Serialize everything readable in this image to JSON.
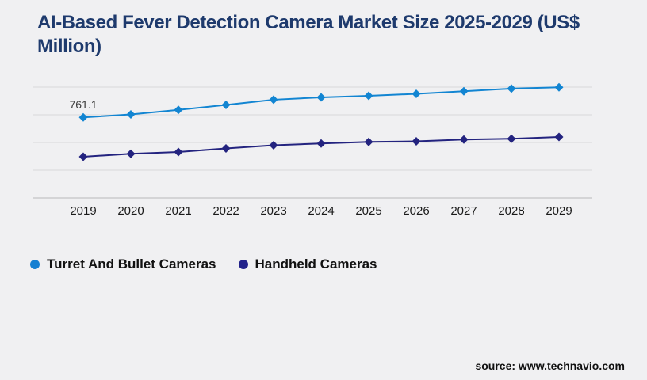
{
  "title": "AI-Based Fever Detection Camera Market Size 2025-2029 (US$ Million)",
  "source": "source: www.technavio.com",
  "colors": {
    "background": "#f0f0f2",
    "title": "#1e3a6d",
    "gridline": "#d8d8da",
    "axis": "#b7b7ba",
    "tick_text": "#1a1a1a",
    "turret_blue": "#1285d2",
    "handheld_navy": "#23237f"
  },
  "legend": {
    "items": [
      {
        "label": "Turret And Bullet Cameras",
        "color": "#1580d2"
      },
      {
        "label": "Handheld Cameras",
        "color": "#22228a"
      }
    ]
  },
  "chart_data": {
    "type": "line",
    "title": "AI-Based Fever Detection Camera Market Size 2025-2029 (US$ Million)",
    "x": [
      2019,
      2020,
      2021,
      2022,
      2023,
      2024,
      2025,
      2026,
      2027,
      2028,
      2029
    ],
    "series": [
      {
        "name": "Turret And Bullet Cameras",
        "color": "#1285d2",
        "values": [
          761.1,
          777.0,
          801.8,
          828.4,
          856.7,
          869.5,
          878.1,
          888.4,
          902.5,
          916.7,
          924.0
        ]
      },
      {
        "name": "Handheld Cameras",
        "color": "#23237f",
        "values": [
          548.1,
          564.0,
          573.8,
          592.7,
          609.8,
          619.7,
          628.2,
          631.2,
          641.1,
          645.4,
          655.2
        ]
      }
    ],
    "annotation": {
      "series": 0,
      "x": 2019,
      "text": "761.1"
    },
    "xlabel": "",
    "ylabel": "",
    "ylim": [
      325,
      925
    ],
    "gridlines": 5,
    "grid": "horizontal-only",
    "y_axis_labels": false,
    "marker": "diamond",
    "legend_position": "bottom-left"
  }
}
